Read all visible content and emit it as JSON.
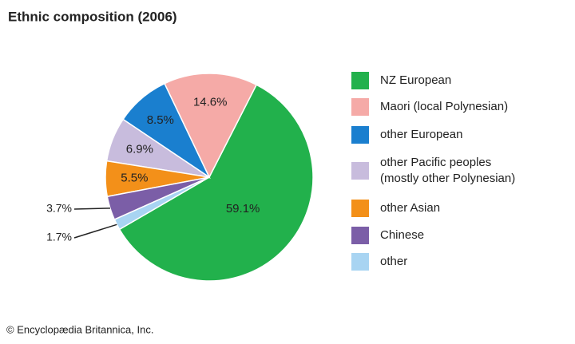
{
  "chart_data": {
    "type": "pie",
    "title": "Ethnic composition (2006)",
    "categories": [
      "NZ European",
      "Maori (local Polynesian)",
      "other European",
      "other Pacific peoples (mostly other Polynesian)",
      "other Asian",
      "Chinese",
      "other"
    ],
    "values": [
      59.1,
      14.6,
      8.5,
      6.9,
      5.5,
      3.7,
      1.7
    ],
    "value_labels": [
      "59.1%",
      "14.6%",
      "8.5%",
      "6.9%",
      "5.5%",
      "3.7%",
      "1.7%"
    ],
    "colors": [
      "#22b14c",
      "#f5aaa7",
      "#1a7fcf",
      "#c8bcdd",
      "#f39019",
      "#7b5ea7",
      "#a8d4f2"
    ],
    "source": "© Encyclopædia Britannica, Inc."
  }
}
